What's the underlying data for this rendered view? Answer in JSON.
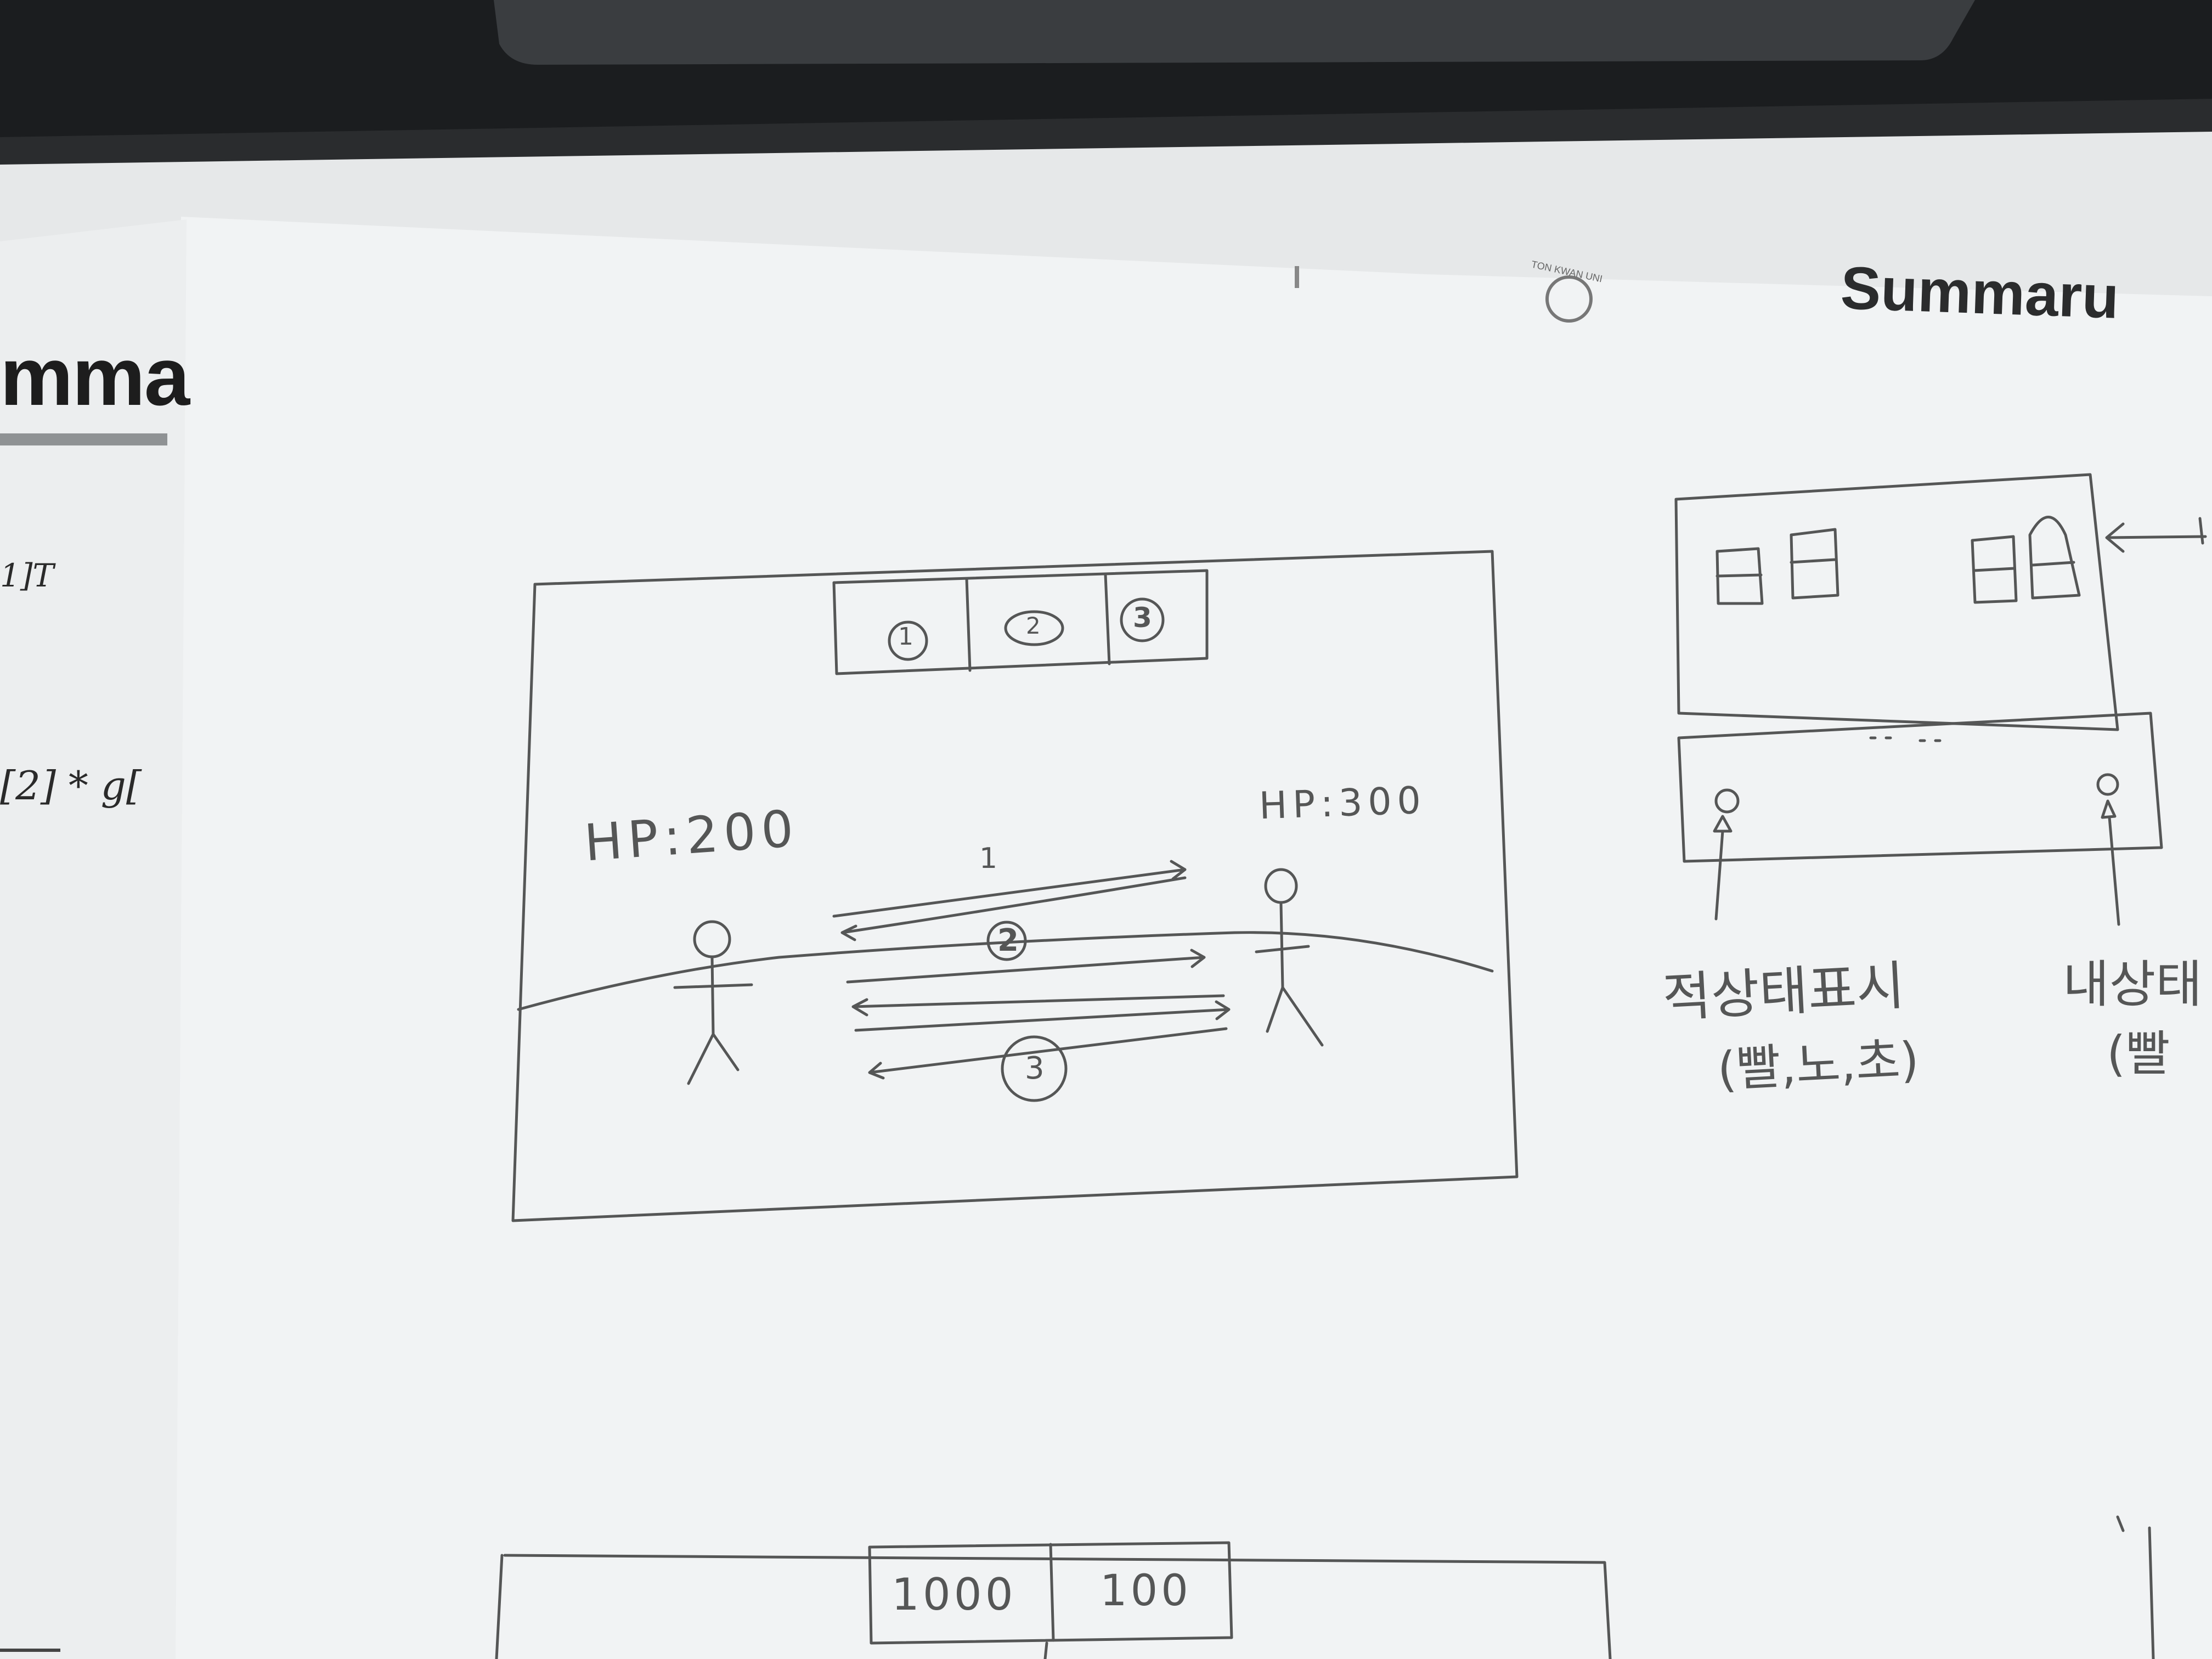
{
  "background_document": {
    "heading_fragment": "mma",
    "top_right_heading_fragment": "Summaru",
    "seal_text": "TON KWAN UNI",
    "formula_1": "1]T",
    "formula_2": "[2] * g[",
    "colors": {
      "paper": "#f1f3f4",
      "desk": "#2a2c2e",
      "pencil": "#555656"
    }
  },
  "sketch_main": {
    "skill_slots": [
      "1",
      "2",
      "3"
    ],
    "player_hp": "HP:200",
    "enemy_hp": "HP:300",
    "attack_labels": [
      "1",
      "2",
      "3"
    ]
  },
  "sketch_side": {
    "label_left": "적상태표시",
    "label_left_sub": "(빨,노,초)",
    "label_right": "내상태",
    "label_right_sub": "(빨"
  },
  "sketch_bottom": {
    "slots": [
      "1000",
      "100"
    ]
  }
}
